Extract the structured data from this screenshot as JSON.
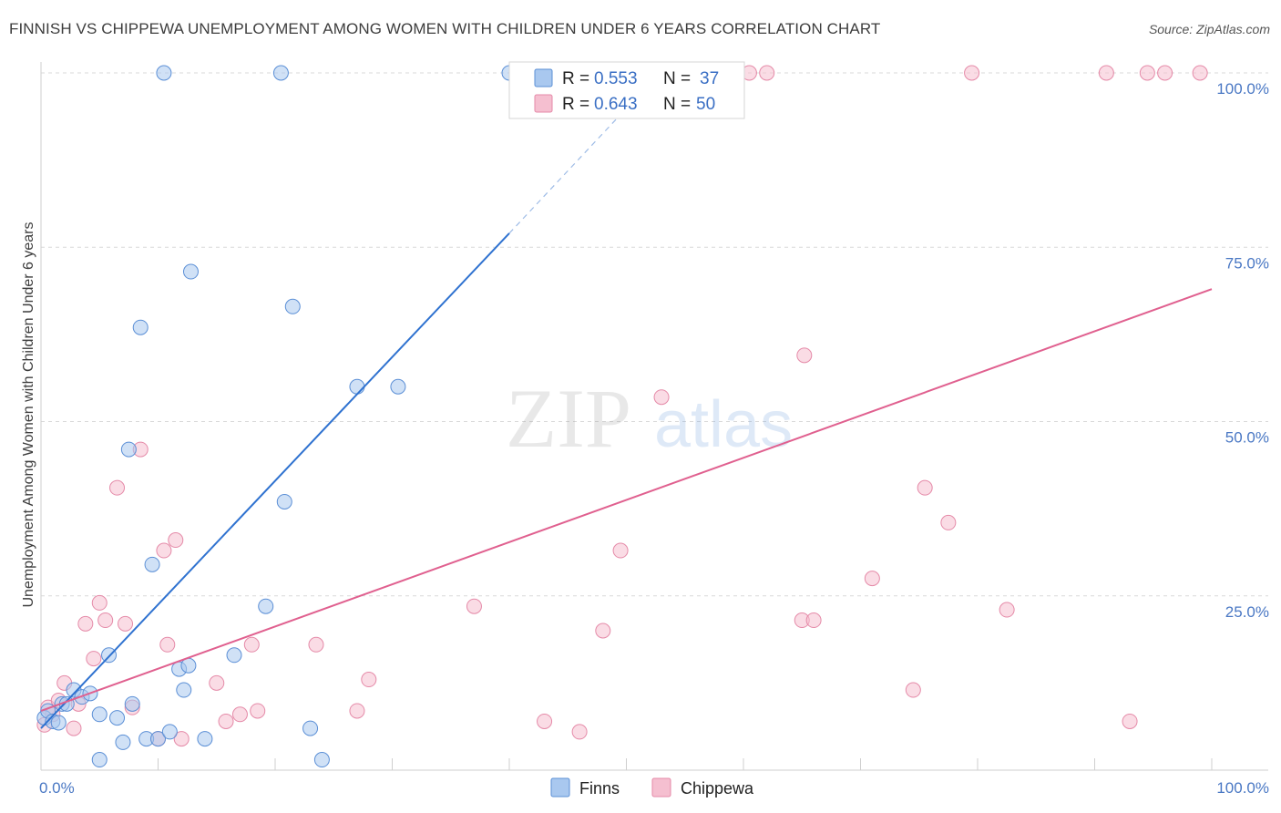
{
  "header": {
    "title": "FINNISH VS CHIPPEWA UNEMPLOYMENT AMONG WOMEN WITH CHILDREN UNDER 6 YEARS CORRELATION CHART",
    "source": "Source: ZipAtlas.com"
  },
  "watermark": {
    "zip": "ZIP",
    "atlas": "atlas"
  },
  "colors": {
    "finns_fill": "#a9c8ef",
    "finns_stroke": "#5b8fd6",
    "finns_line": "#2f72d0",
    "chippewa_fill": "#f5bfd0",
    "chippewa_stroke": "#e58aa8",
    "chippewa_line": "#e0608f",
    "tick_text": "#4a78c4",
    "grid": "#d9d9d9"
  },
  "chart_data": {
    "type": "scatter",
    "title": "FINNISH VS CHIPPEWA UNEMPLOYMENT AMONG WOMEN WITH CHILDREN UNDER 6 YEARS CORRELATION CHART",
    "xlabel": "",
    "ylabel": "Unemployment Among Women with Children Under 6 years",
    "xlim": [
      0,
      100
    ],
    "ylim": [
      0,
      100
    ],
    "x_tick_labels": [
      "0.0%",
      "100.0%"
    ],
    "y_tick_labels": [
      "100.0%",
      "75.0%",
      "50.0%",
      "25.0%"
    ],
    "y_tick_values": [
      100,
      75,
      50,
      25
    ],
    "grid": true,
    "legend_position": "top-center",
    "legend": [
      {
        "series": "Finns",
        "r_label": "R =",
        "r_value": "0.553",
        "n_label": "N =",
        "n_value": "37"
      },
      {
        "series": "Chippewa",
        "r_label": "R =",
        "r_value": "0.643",
        "n_label": "N =",
        "n_value": "50"
      }
    ],
    "series": [
      {
        "name": "Finns",
        "trend": {
          "x0": 0,
          "y0": 6.0,
          "x1": 40,
          "y1": 77.0,
          "dashed_to_x": 52,
          "dashed_to_y": 98.5
        },
        "points": [
          [
            0.3,
            7.5
          ],
          [
            0.6,
            8.5
          ],
          [
            1.0,
            7.0
          ],
          [
            1.5,
            6.8
          ],
          [
            1.8,
            9.5
          ],
          [
            2.2,
            9.5
          ],
          [
            2.8,
            11.5
          ],
          [
            3.5,
            10.5
          ],
          [
            4.2,
            11.0
          ],
          [
            5.0,
            8.0
          ],
          [
            5.8,
            16.5
          ],
          [
            6.5,
            7.5
          ],
          [
            7.0,
            4.0
          ],
          [
            7.5,
            46.0
          ],
          [
            7.8,
            9.5
          ],
          [
            8.5,
            63.5
          ],
          [
            9.0,
            4.5
          ],
          [
            9.5,
            29.5
          ],
          [
            10.0,
            4.5
          ],
          [
            10.5,
            100.0
          ],
          [
            11.0,
            5.5
          ],
          [
            11.8,
            14.5
          ],
          [
            12.2,
            11.5
          ],
          [
            12.6,
            15.0
          ],
          [
            12.8,
            71.5
          ],
          [
            14.0,
            4.5
          ],
          [
            16.5,
            16.5
          ],
          [
            19.2,
            23.5
          ],
          [
            20.5,
            100.0
          ],
          [
            20.8,
            38.5
          ],
          [
            21.5,
            66.5
          ],
          [
            23.0,
            6.0
          ],
          [
            24.0,
            1.5
          ],
          [
            27.0,
            55.0
          ],
          [
            30.5,
            55.0
          ],
          [
            40.0,
            100.0
          ],
          [
            5.0,
            1.5
          ]
        ]
      },
      {
        "name": "Chippewa",
        "trend": {
          "x0": 0,
          "y0": 8.5,
          "x1": 100,
          "y1": 69.0
        },
        "points": [
          [
            0.3,
            6.5
          ],
          [
            0.6,
            9.0
          ],
          [
            1.0,
            8.0
          ],
          [
            1.5,
            10.0
          ],
          [
            2.0,
            12.5
          ],
          [
            2.8,
            6.0
          ],
          [
            3.2,
            9.5
          ],
          [
            3.8,
            21.0
          ],
          [
            4.5,
            16.0
          ],
          [
            5.0,
            24.0
          ],
          [
            5.5,
            21.5
          ],
          [
            6.5,
            40.5
          ],
          [
            7.2,
            21.0
          ],
          [
            7.8,
            9.0
          ],
          [
            8.5,
            46.0
          ],
          [
            10.0,
            4.5
          ],
          [
            10.5,
            31.5
          ],
          [
            10.8,
            18.0
          ],
          [
            11.5,
            33.0
          ],
          [
            12.0,
            4.5
          ],
          [
            15.0,
            12.5
          ],
          [
            15.8,
            7.0
          ],
          [
            17.0,
            8.0
          ],
          [
            18.5,
            8.5
          ],
          [
            18.0,
            18.0
          ],
          [
            23.5,
            18.0
          ],
          [
            27.0,
            8.5
          ],
          [
            28.0,
            13.0
          ],
          [
            37.0,
            23.5
          ],
          [
            43.0,
            7.0
          ],
          [
            46.0,
            5.5
          ],
          [
            48.0,
            20.0
          ],
          [
            49.5,
            31.5
          ],
          [
            53.0,
            53.5
          ],
          [
            60.5,
            100.0
          ],
          [
            62.0,
            100.0
          ],
          [
            65.0,
            21.5
          ],
          [
            66.0,
            21.5
          ],
          [
            65.2,
            59.5
          ],
          [
            71.0,
            27.5
          ],
          [
            74.5,
            11.5
          ],
          [
            75.5,
            40.5
          ],
          [
            77.5,
            35.5
          ],
          [
            79.5,
            100.0
          ],
          [
            82.5,
            23.0
          ],
          [
            91.0,
            100.0
          ],
          [
            93.0,
            7.0
          ],
          [
            94.5,
            100.0
          ],
          [
            96.0,
            100.0
          ],
          [
            99.0,
            100.0
          ]
        ]
      }
    ]
  },
  "bottom_legend": {
    "finns": "Finns",
    "chippewa": "Chippewa"
  }
}
